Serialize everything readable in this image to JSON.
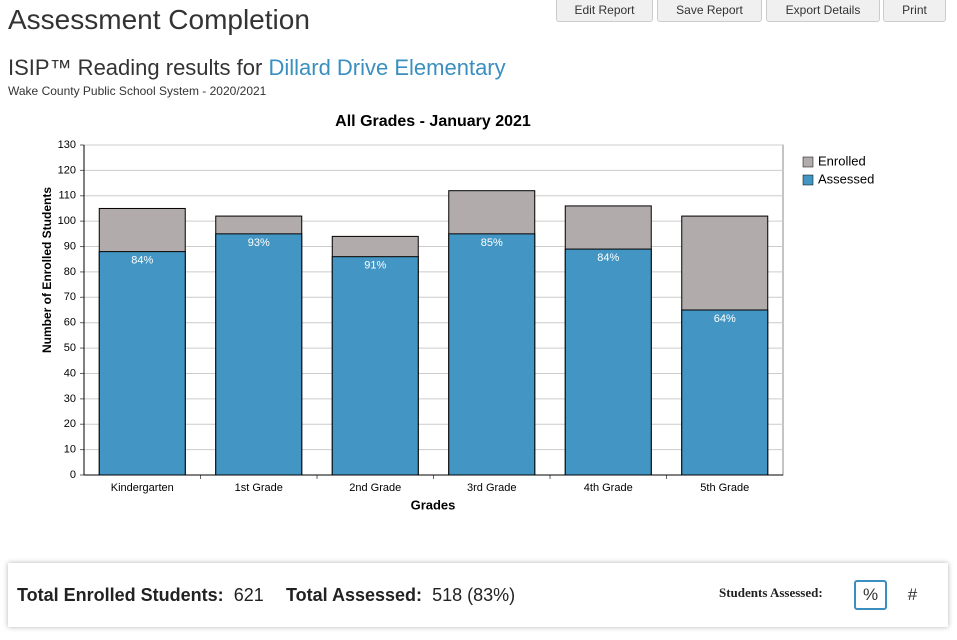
{
  "header": {
    "title": "Assessment Completion",
    "buttons": [
      "Edit Report",
      "Save Report",
      "Export Details",
      "Print"
    ],
    "subtitle": "ISIP™ Reading results for ",
    "school": "Dillard Drive Elementary",
    "district": "Wake County Public School System - 2020/2021"
  },
  "chart_data": {
    "type": "bar",
    "title": "All Grades - January 2021",
    "x_label": "Grades",
    "y_label": "Number of Enrolled Students",
    "categories": [
      "Kindergarten",
      "1st Grade",
      "2nd Grade",
      "3rd Grade",
      "4th Grade",
      "5th Grade"
    ],
    "stacked": false,
    "series": [
      {
        "name": "Enrolled",
        "color": "#b1acab",
        "values": [
          105,
          102,
          94,
          112,
          106,
          102
        ]
      },
      {
        "name": "Assessed",
        "color": "#4396c3",
        "values": [
          88,
          95,
          86,
          95,
          89,
          65
        ],
        "percent_labels": [
          "84%",
          "93%",
          "91%",
          "85%",
          "84%",
          "64%"
        ]
      }
    ],
    "ylim": [
      0,
      130
    ],
    "yticks": [
      0,
      10,
      20,
      30,
      40,
      50,
      60,
      70,
      80,
      90,
      100,
      110,
      120,
      130
    ],
    "grid": true,
    "legend": "right"
  },
  "summary": {
    "enrolled_label": "Total Enrolled Students:",
    "enrolled": "621",
    "assessed_label": "Total Assessed:",
    "assessed": "518 (83%)",
    "toggle_label": "Students Assessed:",
    "toggle": [
      "%",
      "#"
    ]
  }
}
